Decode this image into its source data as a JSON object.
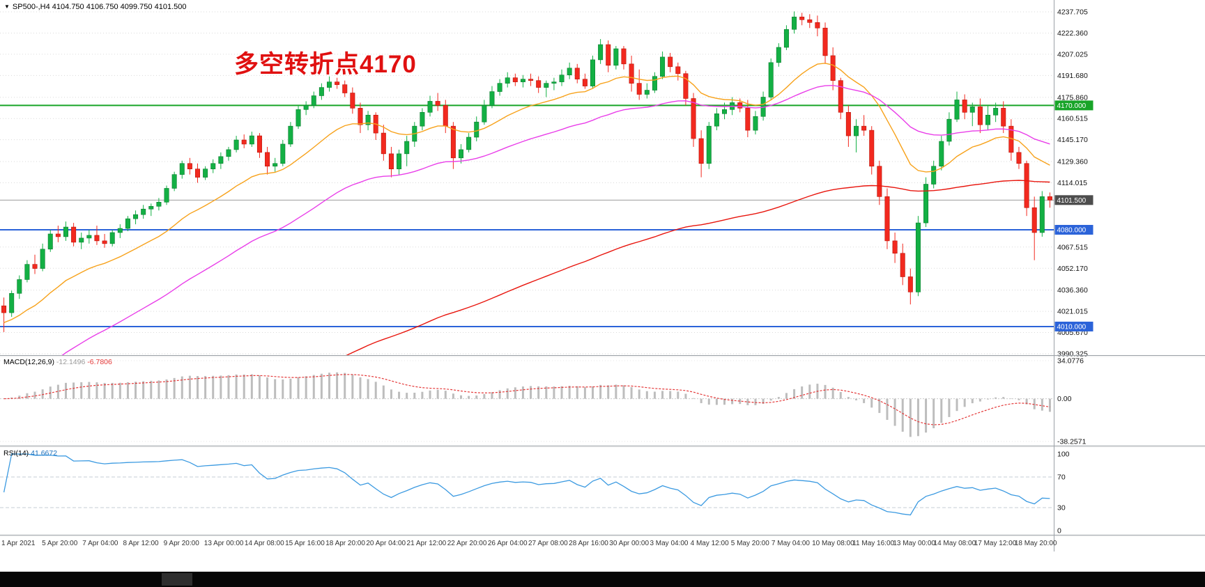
{
  "header": {
    "icon": "▼",
    "symbol_info": "SP500-,H4 4104.750 4106.750 4099.750 4101.500"
  },
  "annotation": {
    "text": "多空转折点4170",
    "color": "#e01010"
  },
  "macd_panel": {
    "label": "MACD(12,26,9)",
    "main_value": "-12.1496",
    "signal_value": "-6.7806",
    "axis_labels": [
      "34.0776",
      "0.00",
      "-38.2571"
    ],
    "axis_max": 34.0776,
    "axis_min": -38.2571,
    "hist_color": "#bdbdbd",
    "signal_color": "#e43737"
  },
  "rsi_panel": {
    "label": "RSI(14)",
    "value": "41.6672",
    "axis_labels": [
      "100",
      "70",
      "30",
      "0"
    ],
    "levels": [
      70,
      30
    ],
    "color": "#3b9ae1"
  },
  "chart_data": {
    "type": "candlestick",
    "symbol": "SP500-",
    "timeframe": "H4",
    "ohlc_display": {
      "open": "4104.750",
      "high": "4106.750",
      "low": "4099.750",
      "close": "4101.500"
    },
    "colors": {
      "up": "#13b044",
      "down": "#f2291f",
      "up_border": "#0b7e2f",
      "down_border": "#b91408"
    },
    "price_axis": {
      "max": 4237.705,
      "min": 3990.325,
      "tick_labels": [
        "4237.705",
        "4222.360",
        "4207.025",
        "4191.680",
        "4175.860",
        "4160.515",
        "4145.170",
        "4129.360",
        "4114.015",
        "4067.515",
        "4052.170",
        "4036.360",
        "4021.015",
        "4005.670",
        "3990.325"
      ]
    },
    "hlines": [
      {
        "price": 4170.0,
        "label": "4170.000",
        "color": "#18a428",
        "width": 2,
        "tag_bg": "#18a428"
      },
      {
        "price": 4080.0,
        "label": "4080.000",
        "color": "#2b63d9",
        "width": 2,
        "tag_bg": "#2b63d9"
      },
      {
        "price": 4010.0,
        "label": "4010.000",
        "color": "#2b63d9",
        "width": 2,
        "tag_bg": "#2b63d9"
      },
      {
        "price": 4101.5,
        "label": "4101.500",
        "color": "#9b9b9b",
        "width": 1,
        "tag_bg": "#4d4d4d"
      }
    ],
    "moving_averages": [
      {
        "name": "ma-fast-orange",
        "color": "#f7a21b",
        "period": 18,
        "seed": 4012
      },
      {
        "name": "ma-mid-magenta",
        "color": "#e93ee9",
        "period": 45,
        "seed": 3958
      },
      {
        "name": "ma-slow-red",
        "color": "#e8150d",
        "period": 130,
        "seed": 3858
      }
    ],
    "candles": [
      [
        4025,
        4031,
        4006,
        4020
      ],
      [
        4020,
        4036,
        4017,
        4034
      ],
      [
        4034,
        4047,
        4030,
        4044
      ],
      [
        4044,
        4058,
        4042,
        4055
      ],
      [
        4055,
        4062,
        4048,
        4052
      ],
      [
        4052,
        4070,
        4050,
        4066
      ],
      [
        4066,
        4080,
        4064,
        4077
      ],
      [
        4077,
        4083,
        4071,
        4075
      ],
      [
        4075,
        4086,
        4072,
        4082
      ],
      [
        4082,
        4085,
        4068,
        4071
      ],
      [
        4071,
        4078,
        4066,
        4074
      ],
      [
        4074,
        4080,
        4070,
        4076
      ],
      [
        4076,
        4083,
        4069,
        4072
      ],
      [
        4072,
        4077,
        4067,
        4070
      ],
      [
        4070,
        4080,
        4068,
        4078
      ],
      [
        4078,
        4084,
        4074,
        4081
      ],
      [
        4081,
        4090,
        4079,
        4088
      ],
      [
        4088,
        4094,
        4084,
        4091
      ],
      [
        4091,
        4098,
        4088,
        4095
      ],
      [
        4095,
        4099,
        4090,
        4097
      ],
      [
        4097,
        4103,
        4094,
        4100
      ],
      [
        4100,
        4112,
        4098,
        4110
      ],
      [
        4110,
        4122,
        4108,
        4120
      ],
      [
        4120,
        4130,
        4117,
        4128
      ],
      [
        4128,
        4132,
        4120,
        4124
      ],
      [
        4124,
        4128,
        4114,
        4118
      ],
      [
        4118,
        4126,
        4116,
        4124
      ],
      [
        4124,
        4131,
        4121,
        4128
      ],
      [
        4128,
        4136,
        4124,
        4133
      ],
      [
        4133,
        4140,
        4130,
        4138
      ],
      [
        4138,
        4148,
        4136,
        4145
      ],
      [
        4145,
        4149,
        4139,
        4142
      ],
      [
        4142,
        4151,
        4140,
        4148
      ],
      [
        4148,
        4150,
        4132,
        4136
      ],
      [
        4136,
        4140,
        4120,
        4126
      ],
      [
        4126,
        4132,
        4122,
        4128
      ],
      [
        4128,
        4145,
        4126,
        4142
      ],
      [
        4142,
        4158,
        4140,
        4155
      ],
      [
        4155,
        4170,
        4153,
        4167
      ],
      [
        4167,
        4173,
        4163,
        4170
      ],
      [
        4170,
        4180,
        4168,
        4177
      ],
      [
        4177,
        4186,
        4174,
        4183
      ],
      [
        4183,
        4191,
        4180,
        4187
      ],
      [
        4187,
        4190,
        4182,
        4185
      ],
      [
        4185,
        4188,
        4176,
        4179
      ],
      [
        4179,
        4183,
        4164,
        4168
      ],
      [
        4168,
        4172,
        4150,
        4156
      ],
      [
        4156,
        4166,
        4152,
        4163
      ],
      [
        4163,
        4165,
        4145,
        4150
      ],
      [
        4150,
        4156,
        4130,
        4135
      ],
      [
        4135,
        4140,
        4118,
        4124
      ],
      [
        4124,
        4138,
        4120,
        4135
      ],
      [
        4135,
        4148,
        4126,
        4144
      ],
      [
        4144,
        4158,
        4140,
        4155
      ],
      [
        4155,
        4168,
        4152,
        4165
      ],
      [
        4165,
        4177,
        4162,
        4173
      ],
      [
        4173,
        4179,
        4166,
        4170
      ],
      [
        4170,
        4174,
        4150,
        4155
      ],
      [
        4155,
        4158,
        4124,
        4132
      ],
      [
        4132,
        4142,
        4128,
        4138
      ],
      [
        4138,
        4150,
        4136,
        4147
      ],
      [
        4147,
        4162,
        4144,
        4158
      ],
      [
        4158,
        4174,
        4156,
        4170
      ],
      [
        4170,
        4184,
        4168,
        4180
      ],
      [
        4180,
        4189,
        4177,
        4186
      ],
      [
        4186,
        4194,
        4183,
        4190
      ],
      [
        4190,
        4193,
        4184,
        4187
      ],
      [
        4187,
        4192,
        4183,
        4189
      ],
      [
        4189,
        4193,
        4184,
        4188
      ],
      [
        4188,
        4191,
        4179,
        4183
      ],
      [
        4183,
        4188,
        4176,
        4186
      ],
      [
        4186,
        4190,
        4181,
        4187
      ],
      [
        4187,
        4196,
        4184,
        4192
      ],
      [
        4192,
        4201,
        4189,
        4197
      ],
      [
        4197,
        4200,
        4186,
        4189
      ],
      [
        4189,
        4193,
        4182,
        4184
      ],
      [
        4184,
        4206,
        4182,
        4203
      ],
      [
        4203,
        4218,
        4200,
        4214
      ],
      [
        4214,
        4217,
        4194,
        4199
      ],
      [
        4199,
        4213,
        4196,
        4211
      ],
      [
        4211,
        4213,
        4196,
        4200
      ],
      [
        4200,
        4206,
        4180,
        4186
      ],
      [
        4186,
        4196,
        4174,
        4178
      ],
      [
        4178,
        4186,
        4175,
        4181
      ],
      [
        4181,
        4194,
        4179,
        4191
      ],
      [
        4191,
        4209,
        4189,
        4205
      ],
      [
        4205,
        4208,
        4194,
        4198
      ],
      [
        4198,
        4201,
        4188,
        4193
      ],
      [
        4193,
        4195,
        4170,
        4175
      ],
      [
        4175,
        4179,
        4140,
        4146
      ],
      [
        4146,
        4152,
        4118,
        4128
      ],
      [
        4128,
        4158,
        4124,
        4155
      ],
      [
        4155,
        4168,
        4152,
        4164
      ],
      [
        4164,
        4172,
        4160,
        4167
      ],
      [
        4167,
        4176,
        4163,
        4172
      ],
      [
        4172,
        4175,
        4165,
        4168
      ],
      [
        4168,
        4174,
        4147,
        4152
      ],
      [
        4152,
        4166,
        4149,
        4162
      ],
      [
        4162,
        4180,
        4159,
        4176
      ],
      [
        4176,
        4204,
        4174,
        4201
      ],
      [
        4201,
        4215,
        4198,
        4212
      ],
      [
        4212,
        4228,
        4210,
        4225
      ],
      [
        4225,
        4238,
        4222,
        4234
      ],
      [
        4234,
        4237,
        4228,
        4232
      ],
      [
        4232,
        4236,
        4226,
        4230
      ],
      [
        4230,
        4235,
        4220,
        4226
      ],
      [
        4226,
        4230,
        4200,
        4206
      ],
      [
        4206,
        4212,
        4181,
        4188
      ],
      [
        4188,
        4190,
        4160,
        4165
      ],
      [
        4165,
        4170,
        4140,
        4148
      ],
      [
        4148,
        4160,
        4136,
        4155
      ],
      [
        4155,
        4163,
        4148,
        4152
      ],
      [
        4152,
        4155,
        4120,
        4126
      ],
      [
        4126,
        4130,
        4098,
        4104
      ],
      [
        4104,
        4110,
        4066,
        4072
      ],
      [
        4072,
        4078,
        4056,
        4063
      ],
      [
        4063,
        4070,
        4040,
        4046
      ],
      [
        4046,
        4052,
        4026,
        4035
      ],
      [
        4035,
        4090,
        4032,
        4085
      ],
      [
        4085,
        4118,
        4082,
        4113
      ],
      [
        4113,
        4130,
        4110,
        4126
      ],
      [
        4126,
        4148,
        4123,
        4144
      ],
      [
        4144,
        4165,
        4141,
        4160
      ],
      [
        4160,
        4180,
        4158,
        4174
      ],
      [
        4174,
        4178,
        4160,
        4165
      ],
      [
        4165,
        4172,
        4155,
        4169
      ],
      [
        4169,
        4175,
        4150,
        4156
      ],
      [
        4156,
        4170,
        4152,
        4163
      ],
      [
        4163,
        4172,
        4158,
        4168
      ],
      [
        4168,
        4173,
        4150,
        4155
      ],
      [
        4155,
        4160,
        4130,
        4136
      ],
      [
        4136,
        4140,
        4124,
        4128
      ],
      [
        4128,
        4130,
        4090,
        4096
      ],
      [
        4096,
        4104,
        4058,
        4078
      ],
      [
        4078,
        4108,
        4075,
        4104
      ],
      [
        4104,
        4107,
        4096,
        4101.5
      ]
    ],
    "time_axis": [
      "1 Apr 2021",
      "5 Apr 20:00",
      "7 Apr 04:00",
      "8 Apr 12:00",
      "9 Apr 20:00",
      "13 Apr 00:00",
      "14 Apr 08:00",
      "15 Apr 16:00",
      "18 Apr 20:00",
      "20 Apr 04:00",
      "21 Apr 12:00",
      "22 Apr 20:00",
      "26 Apr 04:00",
      "27 Apr 08:00",
      "28 Apr 16:00",
      "30 Apr 00:00",
      "3 May 04:00",
      "4 May 12:00",
      "5 May 20:00",
      "7 May 04:00",
      "10 May 08:00",
      "11 May 16:00",
      "13 May 00:00",
      "14 May 08:00",
      "17 May 12:00",
      "18 May 20:00"
    ]
  }
}
